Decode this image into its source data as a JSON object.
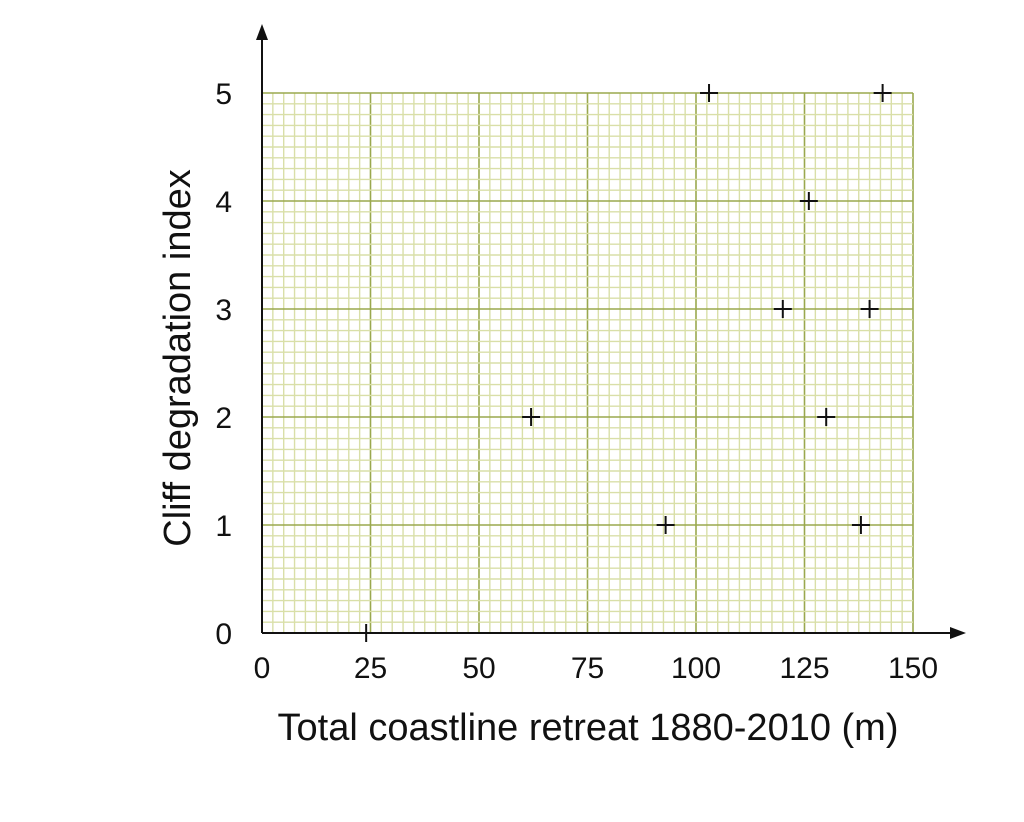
{
  "chart_data": {
    "type": "scatter",
    "xlabel": "Total coastline retreat 1880-2010 (m)",
    "ylabel": "Cliff degradation index",
    "xlim": [
      0,
      150
    ],
    "ylim": [
      0,
      5
    ],
    "x_ticks": [
      "0",
      "25",
      "50",
      "75",
      "100",
      "125",
      "150"
    ],
    "y_ticks": [
      "0",
      "1",
      "2",
      "3",
      "4",
      "5"
    ],
    "grid": true,
    "marker": "plus",
    "colors": {
      "grid_major": "#9aa84e",
      "grid_minor": "#d9dfa8",
      "axis": "#111111"
    },
    "points": [
      {
        "x": 24,
        "y": 0
      },
      {
        "x": 62,
        "y": 2
      },
      {
        "x": 93,
        "y": 1
      },
      {
        "x": 103,
        "y": 5
      },
      {
        "x": 120,
        "y": 3
      },
      {
        "x": 126,
        "y": 4
      },
      {
        "x": 130,
        "y": 2
      },
      {
        "x": 138,
        "y": 1
      },
      {
        "x": 140,
        "y": 3
      },
      {
        "x": 143,
        "y": 5
      }
    ]
  }
}
